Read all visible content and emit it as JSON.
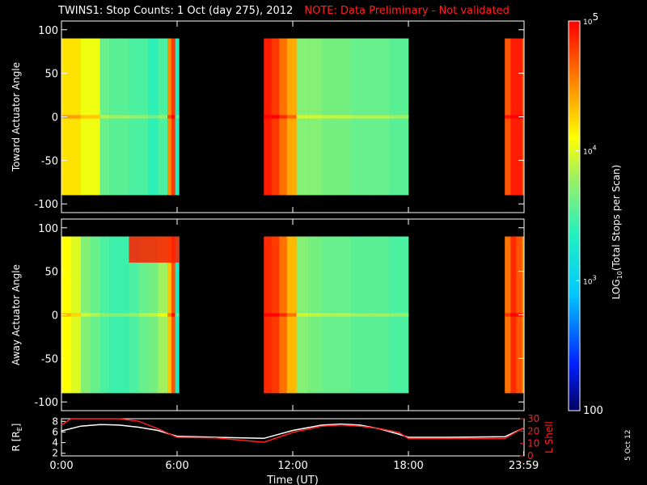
{
  "title": {
    "main": "TWINS1: Stop Counts:  1 Oct (day 275), 2012",
    "note": "NOTE: Data Preliminary - Not validated"
  },
  "date_stamp": "5 Oct 12",
  "chart_data": [
    {
      "type": "heatmap",
      "ylabel": "Toward Actuator Angle",
      "ylim": [
        -110,
        110
      ],
      "yticks": [
        -100,
        -50,
        0,
        50,
        100
      ],
      "xlim": [
        0,
        24
      ],
      "data_y_range": [
        -90,
        90
      ],
      "x_edges": [
        0,
        0.5,
        1,
        1.5,
        2,
        2.5,
        3,
        3.5,
        4,
        4.5,
        5,
        5.5,
        5.7,
        5.9,
        6.1,
        10.5,
        10.9,
        11.3,
        11.7,
        12.2,
        12.8,
        13.5,
        14.2,
        15,
        16,
        17,
        18,
        23,
        23.3,
        23.6,
        23.9,
        24
      ],
      "column_log_counts": [
        4.2,
        4.2,
        4.05,
        4.05,
        3.6,
        3.55,
        3.55,
        3.5,
        3.5,
        3.4,
        3.5,
        4.5,
        4.8,
        3.3,
        null,
        4.9,
        4.8,
        4.6,
        4.4,
        3.7,
        3.7,
        3.65,
        3.65,
        3.6,
        3.6,
        3.55,
        null,
        4.7,
        4.9,
        4.9,
        4.7
      ],
      "zero_angle_enhancement": 0.25
    },
    {
      "type": "heatmap",
      "ylabel": "Away Actuator Angle",
      "ylim": [
        -110,
        110
      ],
      "yticks": [
        -100,
        -50,
        0,
        50,
        100
      ],
      "xlim": [
        0,
        24
      ],
      "data_y_range": [
        -90,
        90
      ],
      "x_edges": [
        0,
        0.5,
        1,
        1.5,
        2,
        2.5,
        3,
        3.5,
        4,
        4.5,
        5,
        5.5,
        5.7,
        5.9,
        6.1,
        10.5,
        10.9,
        11.3,
        11.7,
        12.2,
        12.8,
        13.5,
        14.2,
        15,
        16,
        17,
        18,
        23,
        23.3,
        23.6,
        23.9,
        24
      ],
      "column_log_counts": [
        4.1,
        4.0,
        3.7,
        3.6,
        3.5,
        3.45,
        3.45,
        3.5,
        3.6,
        3.65,
        3.8,
        4.3,
        4.7,
        3.3,
        null,
        4.85,
        4.8,
        4.6,
        4.35,
        3.7,
        3.65,
        3.6,
        3.6,
        3.55,
        3.55,
        3.5,
        null,
        4.6,
        4.85,
        4.7,
        4.5
      ],
      "high_angle_band": {
        "y_from": 60,
        "y_to": 90,
        "x_from": 3.5,
        "x_to": 6.1,
        "log_counts": 4.9
      },
      "zero_angle_enhancement": 0.25
    },
    {
      "type": "line",
      "xlabel": "Time (UT)",
      "ylabel_left": "R [R",
      "ylabel_left_sub": "E",
      "ylabel_left_close": "]",
      "ylabel_right": "L Shell",
      "xlim": [
        0,
        24
      ],
      "xticks": [
        0,
        6,
        12,
        18,
        23.983
      ],
      "xtick_labels": [
        "0:00",
        "6:00",
        "12:00",
        "18:00",
        "23:59"
      ],
      "ylim_left": [
        1.5,
        8.5
      ],
      "yticks_left": [
        2,
        4,
        6,
        8
      ],
      "ylim_right": [
        0,
        30
      ],
      "yticks_right": [
        0,
        10,
        20,
        30
      ],
      "series": [
        {
          "axis": "left",
          "color": "#ffffff",
          "x": [
            0,
            1,
            2,
            3,
            4,
            5,
            6,
            8,
            10.5,
            12,
            13.5,
            14.5,
            15.5,
            16.5,
            17.5,
            18,
            20,
            23,
            24
          ],
          "y": [
            6.2,
            7.1,
            7.4,
            7.3,
            6.9,
            6.3,
            5.2,
            5.0,
            4.8,
            6.3,
            7.3,
            7.5,
            7.3,
            6.6,
            5.6,
            5.0,
            5.0,
            5.1,
            6.8
          ]
        },
        {
          "axis": "right",
          "color": "#ff2020",
          "x": [
            0,
            0.5,
            1,
            2,
            3,
            4,
            5,
            6,
            8,
            10.5,
            12,
            13.5,
            14.5,
            15.5,
            16.5,
            17.5,
            18,
            20,
            23,
            24
          ],
          "y": [
            25,
            30,
            30,
            30,
            30,
            28,
            22,
            15,
            14.5,
            11,
            19,
            24,
            25,
            24,
            22,
            19,
            14,
            14,
            14,
            23
          ]
        }
      ]
    }
  ],
  "colorbar": {
    "label_prefix": "LOG",
    "label_sub": "10",
    "label_rest": "(Total Stops per Scan)",
    "range_log": [
      2,
      5
    ],
    "tick_labels": [
      {
        "value": 5,
        "base": "10",
        "exp": "5"
      },
      {
        "value": 4,
        "base": "10",
        "exp": "4"
      },
      {
        "value": 3,
        "base": "10",
        "exp": "3"
      },
      {
        "value": 2,
        "base": "100",
        "exp": ""
      }
    ]
  }
}
